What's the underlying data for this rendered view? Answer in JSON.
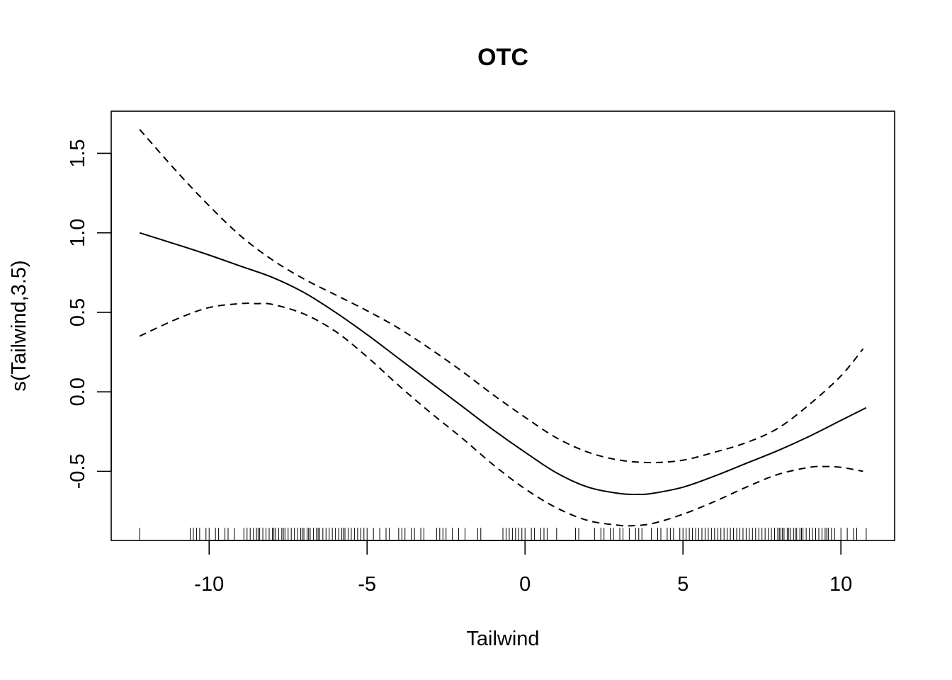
{
  "chart_data": {
    "type": "line",
    "title": "OTC",
    "xlabel": "Tailwind",
    "ylabel": "s(Tailwind,3.5)",
    "xlim": [
      -13.1,
      11.7
    ],
    "ylim": [
      -0.935,
      1.765
    ],
    "xticks": [
      -10,
      -5,
      0,
      5,
      10
    ],
    "xtick_labels": [
      "-10",
      "-5",
      "0",
      "5",
      "10"
    ],
    "yticks": [
      -0.5,
      0.0,
      0.5,
      1.0,
      1.5
    ],
    "ytick_labels": [
      "-0.5",
      "0.0",
      "0.5",
      "1.0",
      "1.5"
    ],
    "grid": false,
    "legend": "none",
    "series": [
      {
        "style": "solid",
        "x": [
          -12.2,
          -11,
          -10,
          -9,
          -8,
          -7,
          -6,
          -5,
          -4,
          -3,
          -2,
          -1,
          0,
          1,
          2,
          3,
          3.6,
          4,
          5,
          6,
          7,
          8,
          9,
          10,
          10.8
        ],
        "y": [
          1.0,
          0.925,
          0.86,
          0.79,
          0.72,
          0.625,
          0.5,
          0.36,
          0.21,
          0.06,
          -0.09,
          -0.24,
          -0.38,
          -0.51,
          -0.6,
          -0.64,
          -0.645,
          -0.64,
          -0.6,
          -0.53,
          -0.45,
          -0.37,
          -0.28,
          -0.18,
          -0.1
        ]
      },
      {
        "style": "dashed",
        "x": [
          -12.2,
          -11,
          -10,
          -9,
          -8,
          -7,
          -6,
          -5,
          -4,
          -3,
          -2,
          -1,
          0,
          1,
          2,
          3,
          4,
          5,
          6,
          7,
          8,
          9,
          10,
          10.7
        ],
        "y": [
          1.65,
          1.38,
          1.17,
          0.98,
          0.83,
          0.71,
          0.61,
          0.51,
          0.4,
          0.27,
          0.13,
          -0.02,
          -0.16,
          -0.29,
          -0.38,
          -0.43,
          -0.445,
          -0.43,
          -0.38,
          -0.32,
          -0.23,
          -0.08,
          0.1,
          0.27
        ]
      },
      {
        "style": "dashed",
        "x": [
          -12.2,
          -11,
          -10,
          -9,
          -8.5,
          -8,
          -7,
          -6,
          -5,
          -4,
          -3,
          -2,
          -1,
          0,
          1,
          2,
          3,
          3.3,
          4,
          5,
          6,
          7,
          8,
          9,
          9.5,
          10,
          10.7
        ],
        "y": [
          0.35,
          0.46,
          0.53,
          0.555,
          0.555,
          0.55,
          0.49,
          0.38,
          0.22,
          0.04,
          -0.13,
          -0.29,
          -0.46,
          -0.61,
          -0.73,
          -0.81,
          -0.84,
          -0.843,
          -0.83,
          -0.77,
          -0.69,
          -0.6,
          -0.52,
          -0.475,
          -0.47,
          -0.475,
          -0.5
        ]
      }
    ],
    "rug": [
      -12.2,
      -10.6,
      -10.5,
      -10.4,
      -10.3,
      -10.1,
      -10.0,
      -9.8,
      -9.7,
      -9.5,
      -9.4,
      -9.2,
      -8.9,
      -8.8,
      -8.7,
      -8.6,
      -8.5,
      -8.45,
      -8.4,
      -8.3,
      -8.2,
      -8.1,
      -8.0,
      -7.95,
      -7.9,
      -7.8,
      -7.7,
      -7.65,
      -7.6,
      -7.5,
      -7.4,
      -7.3,
      -7.2,
      -7.1,
      -7.05,
      -7.0,
      -6.9,
      -6.85,
      -6.8,
      -6.7,
      -6.6,
      -6.55,
      -6.5,
      -6.4,
      -6.3,
      -6.2,
      -6.1,
      -6.0,
      -5.9,
      -5.8,
      -5.75,
      -5.7,
      -5.6,
      -5.5,
      -5.4,
      -5.3,
      -5.2,
      -5.1,
      -5.0,
      -4.8,
      -4.6,
      -4.4,
      -4.3,
      -4.0,
      -3.9,
      -3.8,
      -3.6,
      -3.5,
      -3.3,
      -3.2,
      -2.8,
      -2.7,
      -2.6,
      -2.5,
      -2.3,
      -2.1,
      -1.9,
      -1.5,
      -1.4,
      -0.7,
      -0.6,
      -0.5,
      -0.4,
      -0.3,
      -0.2,
      -0.1,
      0.0,
      0.2,
      0.3,
      0.5,
      0.6,
      0.7,
      1.0,
      1.6,
      1.7,
      2.2,
      2.4,
      2.5,
      2.7,
      2.8,
      3.0,
      3.1,
      3.3,
      3.5,
      3.6,
      3.7,
      4.0,
      4.2,
      4.3,
      4.5,
      4.6,
      4.7,
      4.9,
      5.0,
      5.1,
      5.2,
      5.3,
      5.4,
      5.5,
      5.6,
      5.7,
      5.8,
      5.9,
      6.0,
      6.1,
      6.2,
      6.3,
      6.4,
      6.5,
      6.6,
      6.7,
      6.8,
      6.9,
      7.0,
      7.1,
      7.2,
      7.3,
      7.4,
      7.5,
      7.6,
      7.7,
      7.8,
      7.9,
      8.0,
      8.05,
      8.1,
      8.15,
      8.2,
      8.3,
      8.35,
      8.4,
      8.5,
      8.55,
      8.6,
      8.7,
      8.75,
      8.8,
      8.9,
      9.0,
      9.1,
      9.2,
      9.3,
      9.4,
      9.5,
      9.55,
      9.6,
      9.7,
      9.8,
      10.0,
      10.2,
      10.4,
      10.5,
      10.8
    ]
  }
}
